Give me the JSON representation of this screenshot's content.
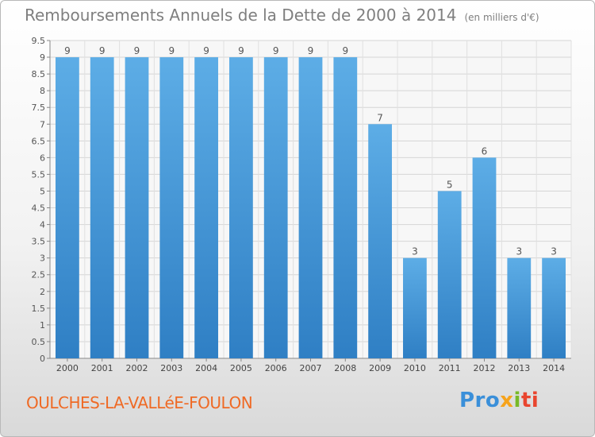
{
  "header": {
    "title": "Remboursements Annuels de la Dette de 2000 à 2014",
    "unit": "(en milliers d'€)"
  },
  "footer": {
    "city": "OULCHES-LA-VALLéE-FOULON",
    "logo": {
      "p1": "Pro",
      "p2": "x",
      "p3": "i",
      "p4": "ti"
    }
  },
  "colors": {
    "bar_light": "#5dade6",
    "bar_dark": "#2f7fc4",
    "city": "#ef6a25"
  },
  "chart_data": {
    "type": "bar",
    "categories": [
      "2000",
      "2001",
      "2002",
      "2003",
      "2004",
      "2005",
      "2006",
      "2007",
      "2008",
      "2009",
      "2010",
      "2011",
      "2012",
      "2013",
      "2014"
    ],
    "values": [
      9,
      9,
      9,
      9,
      9,
      9,
      9,
      9,
      9,
      7,
      3,
      5,
      6,
      3,
      3
    ],
    "data_labels": [
      "9",
      "9",
      "9",
      "9",
      "9",
      "9",
      "9",
      "9",
      "9",
      "7",
      "3",
      "5",
      "6",
      "3",
      "3"
    ],
    "title": "Remboursements Annuels de la Dette de 2000 à 2014",
    "subtitle": "(en milliers d'€)",
    "xlabel": "",
    "ylabel": "",
    "ylim": [
      0,
      9.5
    ],
    "yticks": [
      0,
      0.5,
      1,
      1.5,
      2,
      2.5,
      3,
      3.5,
      4,
      4.5,
      5,
      5.5,
      6,
      6.5,
      7,
      7.5,
      8,
      8.5,
      9,
      9.5
    ],
    "ytick_labels": [
      "0",
      "0.5",
      "1",
      "1.5",
      "2",
      "2.5",
      "3",
      "3.5",
      "4",
      "4.5",
      "5",
      "5.5",
      "6",
      "6.5",
      "7",
      "7.5",
      "8",
      "8.5",
      "9",
      "9.5"
    ],
    "grid": true,
    "legend": "none"
  }
}
